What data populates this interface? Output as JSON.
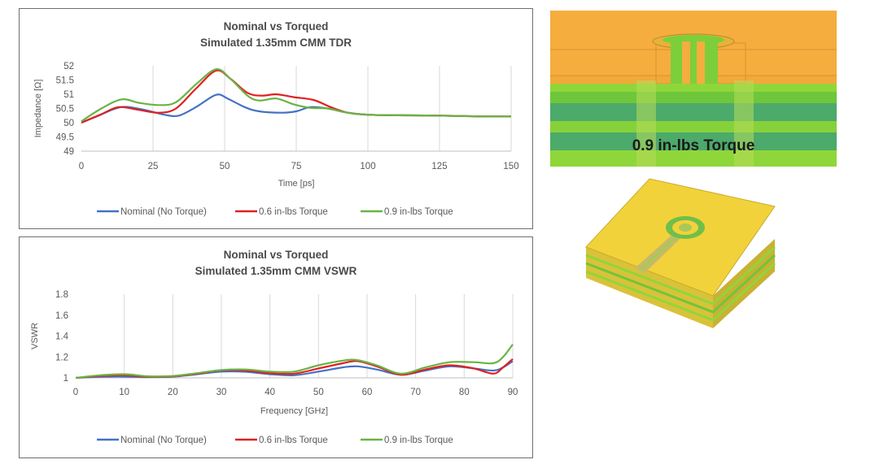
{
  "colors": {
    "nominal": "#4472c4",
    "t06": "#e02020",
    "t09": "#6ab344"
  },
  "chart_data": [
    {
      "type": "line",
      "title": "Nominal vs Torqued",
      "subtitle": "Simulated 1.35mm CMM TDR",
      "xlabel": "Time [ps]",
      "ylabel": "Impedance [Ω]",
      "xlim": [
        0,
        150
      ],
      "ylim": [
        49,
        52
      ],
      "xticks": [
        0,
        25,
        50,
        75,
        100,
        125,
        150
      ],
      "yticks": [
        "49",
        "49.5",
        "50",
        "50.5",
        "51",
        "51.5",
        "52"
      ],
      "grid": "vertical",
      "legend": "bottom",
      "series": [
        {
          "name": "Nominal (No Torque)",
          "color_key": "nominal",
          "points": [
            [
              0,
              50.0
            ],
            [
              6,
              50.25
            ],
            [
              14,
              50.55
            ],
            [
              22,
              50.45
            ],
            [
              29,
              50.28
            ],
            [
              34,
              50.25
            ],
            [
              40,
              50.55
            ],
            [
              47,
              50.98
            ],
            [
              51,
              50.85
            ],
            [
              57,
              50.55
            ],
            [
              62,
              50.4
            ],
            [
              70,
              50.35
            ],
            [
              75,
              50.4
            ],
            [
              80,
              50.55
            ],
            [
              86,
              50.5
            ],
            [
              93,
              50.35
            ],
            [
              100,
              50.28
            ],
            [
              110,
              50.26
            ],
            [
              125,
              50.25
            ],
            [
              140,
              50.22
            ],
            [
              150,
              50.22
            ]
          ]
        },
        {
          "name": "0.6 in-lbs Torque",
          "color_key": "t06",
          "points": [
            [
              0,
              50.0
            ],
            [
              7,
              50.3
            ],
            [
              13,
              50.55
            ],
            [
              20,
              50.45
            ],
            [
              27,
              50.35
            ],
            [
              33,
              50.5
            ],
            [
              40,
              51.2
            ],
            [
              47,
              51.83
            ],
            [
              52,
              51.55
            ],
            [
              58,
              51.05
            ],
            [
              63,
              50.95
            ],
            [
              68,
              51.0
            ],
            [
              74,
              50.9
            ],
            [
              81,
              50.8
            ],
            [
              87,
              50.55
            ],
            [
              93,
              50.35
            ],
            [
              100,
              50.28
            ],
            [
              110,
              50.26
            ],
            [
              125,
              50.25
            ],
            [
              140,
              50.22
            ],
            [
              150,
              50.22
            ]
          ]
        },
        {
          "name": "0.9 in-lbs Torque",
          "color_key": "t09",
          "points": [
            [
              0,
              50.05
            ],
            [
              7,
              50.5
            ],
            [
              14,
              50.82
            ],
            [
              20,
              50.7
            ],
            [
              27,
              50.62
            ],
            [
              33,
              50.72
            ],
            [
              40,
              51.35
            ],
            [
              47,
              51.88
            ],
            [
              52,
              51.55
            ],
            [
              58,
              50.95
            ],
            [
              62,
              50.78
            ],
            [
              68,
              50.85
            ],
            [
              74,
              50.65
            ],
            [
              80,
              50.52
            ],
            [
              86,
              50.5
            ],
            [
              93,
              50.35
            ],
            [
              100,
              50.28
            ],
            [
              110,
              50.26
            ],
            [
              125,
              50.25
            ],
            [
              140,
              50.22
            ],
            [
              150,
              50.22
            ]
          ]
        }
      ]
    },
    {
      "type": "line",
      "title": "Nominal vs Torqued",
      "subtitle": "Simulated 1.35mm CMM VSWR",
      "xlabel": "Frequency [GHz]",
      "ylabel": "VSWR",
      "xlim": [
        0,
        90
      ],
      "ylim": [
        1,
        1.8
      ],
      "xticks": [
        0,
        10,
        20,
        30,
        40,
        50,
        60,
        70,
        80,
        90
      ],
      "yticks": [
        "1",
        "1.2",
        "1.4",
        "1.6",
        "1.8"
      ],
      "grid": "vertical",
      "legend": "bottom",
      "series": [
        {
          "name": "Nominal (No Torque)",
          "color_key": "nominal",
          "points": [
            [
              0,
              1.0
            ],
            [
              5,
              1.01
            ],
            [
              10,
              1.012
            ],
            [
              15,
              1.008
            ],
            [
              20,
              1.012
            ],
            [
              25,
              1.035
            ],
            [
              30,
              1.06
            ],
            [
              35,
              1.058
            ],
            [
              40,
              1.035
            ],
            [
              45,
              1.025
            ],
            [
              50,
              1.06
            ],
            [
              55,
              1.1
            ],
            [
              58,
              1.11
            ],
            [
              62,
              1.08
            ],
            [
              67,
              1.03
            ],
            [
              72,
              1.07
            ],
            [
              77,
              1.11
            ],
            [
              82,
              1.09
            ],
            [
              86,
              1.07
            ],
            [
              88,
              1.1
            ],
            [
              90,
              1.16
            ]
          ]
        },
        {
          "name": "0.6 in-lbs Torque",
          "color_key": "t06",
          "points": [
            [
              0,
              1.0
            ],
            [
              5,
              1.018
            ],
            [
              10,
              1.025
            ],
            [
              15,
              1.01
            ],
            [
              20,
              1.015
            ],
            [
              25,
              1.04
            ],
            [
              30,
              1.072
            ],
            [
              35,
              1.07
            ],
            [
              40,
              1.045
            ],
            [
              45,
              1.04
            ],
            [
              50,
              1.09
            ],
            [
              55,
              1.14
            ],
            [
              58,
              1.16
            ],
            [
              62,
              1.11
            ],
            [
              67,
              1.03
            ],
            [
              72,
              1.08
            ],
            [
              77,
              1.12
            ],
            [
              82,
              1.09
            ],
            [
              86,
              1.04
            ],
            [
              88,
              1.1
            ],
            [
              90,
              1.18
            ]
          ]
        },
        {
          "name": "0.9 in-lbs Torque",
          "color_key": "t09",
          "points": [
            [
              0,
              1.0
            ],
            [
              5,
              1.025
            ],
            [
              10,
              1.035
            ],
            [
              15,
              1.015
            ],
            [
              20,
              1.018
            ],
            [
              25,
              1.045
            ],
            [
              30,
              1.075
            ],
            [
              35,
              1.08
            ],
            [
              40,
              1.06
            ],
            [
              45,
              1.06
            ],
            [
              50,
              1.12
            ],
            [
              55,
              1.165
            ],
            [
              58,
              1.17
            ],
            [
              62,
              1.12
            ],
            [
              67,
              1.04
            ],
            [
              72,
              1.1
            ],
            [
              77,
              1.15
            ],
            [
              82,
              1.15
            ],
            [
              86,
              1.14
            ],
            [
              88,
              1.2
            ],
            [
              90,
              1.32
            ]
          ]
        }
      ]
    }
  ],
  "render_label": "0.9 in-lbs Torque"
}
